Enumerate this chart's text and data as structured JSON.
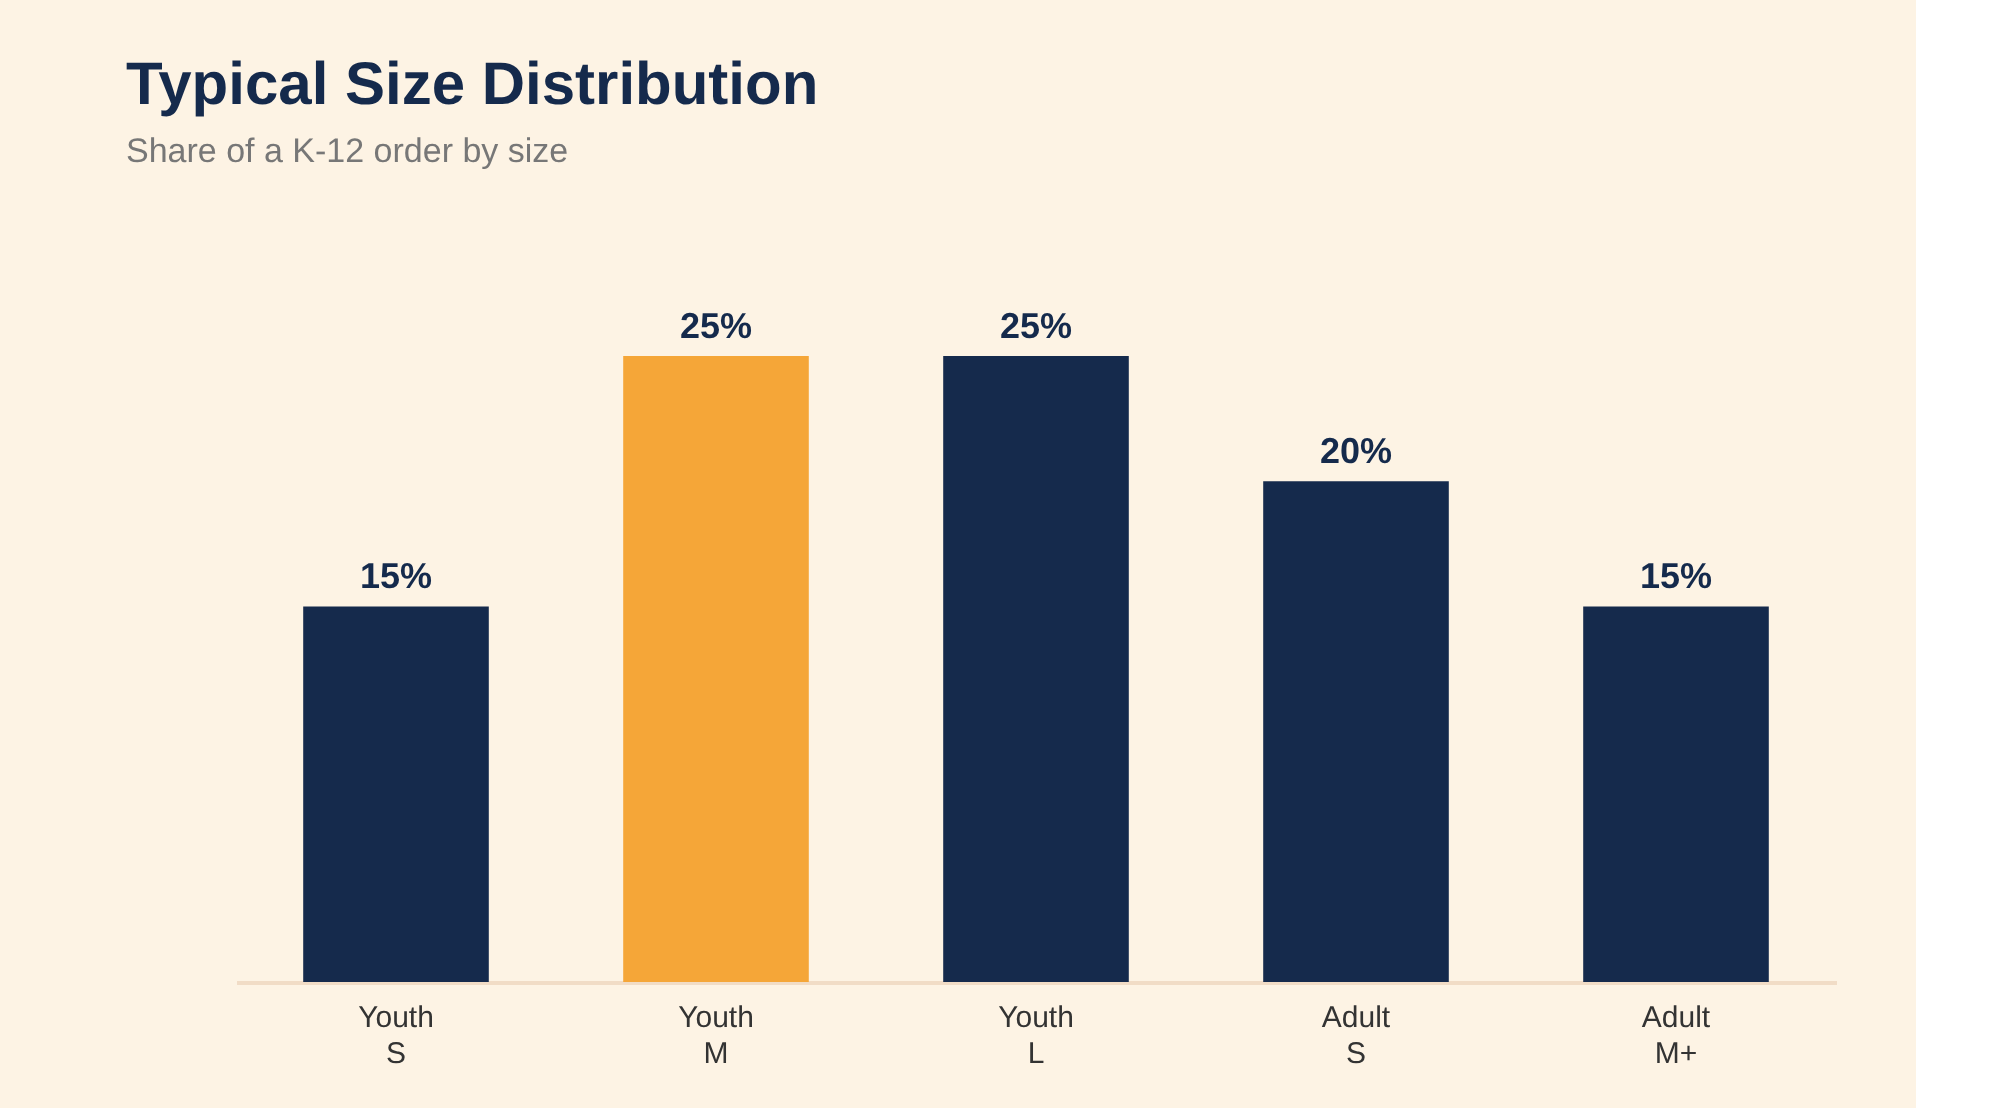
{
  "chart_data": {
    "type": "bar",
    "title": "Typical Size Distribution",
    "subtitle": "Share of a K-12 order by size",
    "categories": [
      "Youth S",
      "Youth M",
      "Youth L",
      "Adult S",
      "Adult M+"
    ],
    "values": [
      15,
      25,
      25,
      20,
      15
    ],
    "value_labels": [
      "15%",
      "25%",
      "25%",
      "20%",
      "15%"
    ],
    "colors": [
      "#152a4c",
      "#f5a638",
      "#152a4c",
      "#152a4c",
      "#152a4c"
    ],
    "grid": false
  }
}
